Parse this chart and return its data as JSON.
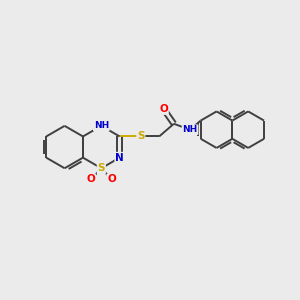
{
  "bg_color": "#ebebeb",
  "bond_color": "#404040",
  "atom_colors": {
    "N": "#0000cc",
    "S": "#ccaa00",
    "O": "#ff0000",
    "C": "#404040"
  },
  "figsize": [
    3.0,
    3.0
  ],
  "dpi": 100,
  "lw": 1.4,
  "font_size": 7.5
}
